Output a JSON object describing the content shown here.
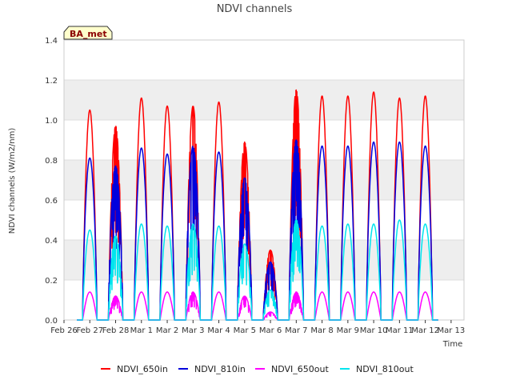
{
  "chart_data": {
    "type": "line",
    "title": "NDVI channels",
    "xlabel": "Time",
    "ylabel": "NDVI channels (W/m2/nm)",
    "ylim": [
      0,
      1.4
    ],
    "yticks": [
      "0.0",
      "0.2",
      "0.4",
      "0.6",
      "0.8",
      "1.0",
      "1.2",
      "1.4"
    ],
    "x_ticks": [
      "Feb 26",
      "Feb 27",
      "Feb 28",
      "Mar 1",
      "Mar 2",
      "Mar 3",
      "Mar 4",
      "Mar 5",
      "Mar 6",
      "Mar 7",
      "Mar 8",
      "Mar 9",
      "Mar 10",
      "Mar 11",
      "Mar 12",
      "Mar 13"
    ],
    "x_unit": "days since Feb 26 00:00",
    "xlim": [
      0,
      15.5
    ],
    "badge": "BA_met",
    "colors": {
      "NDVI_650in": "#ff0000",
      "NDVI_810in": "#0000dd",
      "NDVI_650out": "#ff00ff",
      "NDVI_810out": "#00e5ee",
      "band": "#eeeeee",
      "grid": "#dddddd",
      "badge_bg": "#ffffcc"
    },
    "daily_peaks": [
      {
        "day": "Feb 26",
        "NDVI_650in": 1.05,
        "NDVI_810in": 0.81,
        "NDVI_650out": 0.14,
        "NDVI_810out": 0.45
      },
      {
        "day": "Feb 27",
        "NDVI_650in": 0.97,
        "NDVI_810in": 0.77,
        "NDVI_650out": 0.12,
        "NDVI_810out": 0.42
      },
      {
        "day": "Feb 28",
        "NDVI_650in": 1.11,
        "NDVI_810in": 0.86,
        "NDVI_650out": 0.14,
        "NDVI_810out": 0.48
      },
      {
        "day": "Mar 1",
        "NDVI_650in": 1.07,
        "NDVI_810in": 0.83,
        "NDVI_650out": 0.14,
        "NDVI_810out": 0.47
      },
      {
        "day": "Mar 2",
        "NDVI_650in": 1.07,
        "NDVI_810in": 0.87,
        "NDVI_650out": 0.14,
        "NDVI_810out": 0.48
      },
      {
        "day": "Mar 3",
        "NDVI_650in": 1.09,
        "NDVI_810in": 0.84,
        "NDVI_650out": 0.14,
        "NDVI_810out": 0.47
      },
      {
        "day": "Mar 4",
        "NDVI_650in": 0.89,
        "NDVI_810in": 0.71,
        "NDVI_650out": 0.12,
        "NDVI_810out": 0.38
      },
      {
        "day": "Mar 5",
        "NDVI_650in": 0.35,
        "NDVI_810in": 0.29,
        "NDVI_650out": 0.04,
        "NDVI_810out": 0.15
      },
      {
        "day": "Mar 6",
        "NDVI_650in": 1.15,
        "NDVI_810in": 0.9,
        "NDVI_650out": 0.14,
        "NDVI_810out": 0.5
      },
      {
        "day": "Mar 7",
        "NDVI_650in": 1.12,
        "NDVI_810in": 0.87,
        "NDVI_650out": 0.14,
        "NDVI_810out": 0.47
      },
      {
        "day": "Mar 8",
        "NDVI_650in": 1.12,
        "NDVI_810in": 0.87,
        "NDVI_650out": 0.14,
        "NDVI_810out": 0.48
      },
      {
        "day": "Mar 9",
        "NDVI_650in": 1.14,
        "NDVI_810in": 0.89,
        "NDVI_650out": 0.14,
        "NDVI_810out": 0.48
      },
      {
        "day": "Mar 10",
        "NDVI_650in": 1.11,
        "NDVI_810in": 0.89,
        "NDVI_650out": 0.14,
        "NDVI_810out": 0.5
      },
      {
        "day": "Mar 11",
        "NDVI_650in": 1.12,
        "NDVI_810in": 0.87,
        "NDVI_650out": 0.14,
        "NDVI_810out": 0.48
      }
    ],
    "legend": [
      "NDVI_650in",
      "NDVI_810in",
      "NDVI_650out",
      "NDVI_810out"
    ],
    "legend_position": "bottom-center"
  }
}
